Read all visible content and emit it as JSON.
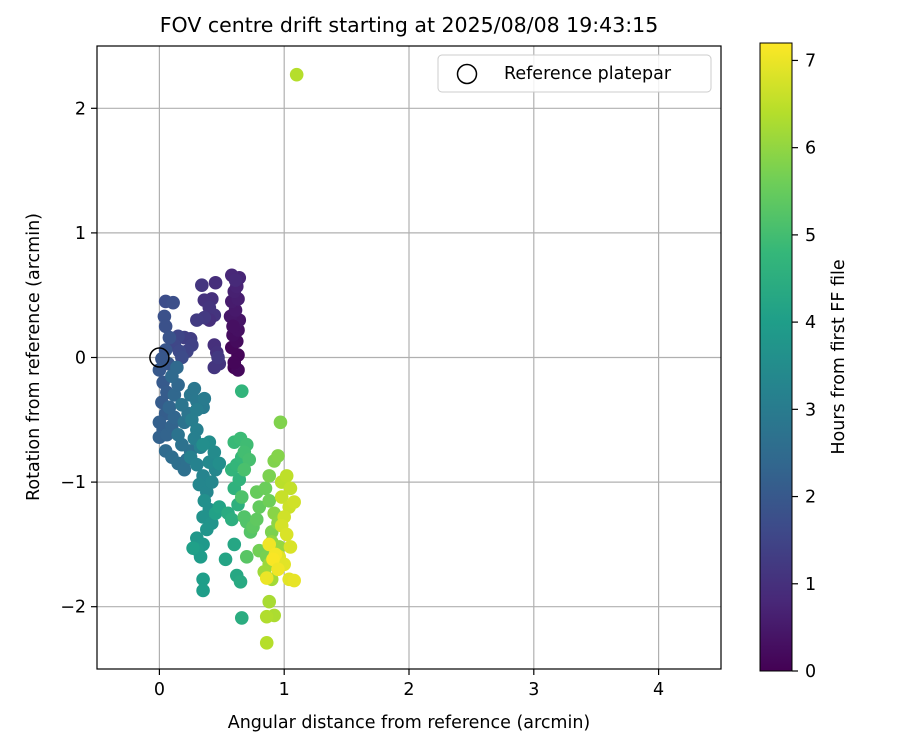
{
  "chart_data": {
    "type": "scatter",
    "title": "FOV centre drift starting at 2025/08/08 19:43:15",
    "xlabel": "Angular distance from reference (arcmin)",
    "ylabel": "Rotation from reference (arcmin)",
    "xlim": [
      -0.5,
      4.5
    ],
    "ylim": [
      -2.5,
      2.5
    ],
    "xticks": [
      0,
      1,
      2,
      3,
      4
    ],
    "yticks": [
      -2,
      -1,
      0,
      1,
      2
    ],
    "grid": true,
    "legend": {
      "placement": "top-right",
      "entries": [
        "Reference platepar"
      ]
    },
    "reference_point": {
      "x": 0.0,
      "y": 0.0,
      "label": "Reference platepar"
    },
    "colorbar": {
      "label": "Hours from first FF file",
      "colormap": "viridis",
      "range": [
        0,
        7.2
      ],
      "ticks": [
        0,
        1,
        2,
        3,
        4,
        5,
        6,
        7
      ]
    },
    "points": [
      {
        "x": 0.6,
        "y": -0.08,
        "c": 0.05
      },
      {
        "x": 0.63,
        "y": 0.02,
        "c": 0.1
      },
      {
        "x": 0.58,
        "y": 0.08,
        "c": 0.12
      },
      {
        "x": 0.62,
        "y": 0.13,
        "c": 0.2
      },
      {
        "x": 0.59,
        "y": 0.18,
        "c": 0.25
      },
      {
        "x": 0.63,
        "y": 0.22,
        "c": 0.3
      },
      {
        "x": 0.61,
        "y": 0.27,
        "c": 0.35
      },
      {
        "x": 0.64,
        "y": 0.3,
        "c": 0.4
      },
      {
        "x": 0.57,
        "y": 0.33,
        "c": 0.45
      },
      {
        "x": 0.61,
        "y": 0.38,
        "c": 0.5
      },
      {
        "x": 0.58,
        "y": 0.45,
        "c": 0.55
      },
      {
        "x": 0.63,
        "y": 0.47,
        "c": 0.6
      },
      {
        "x": 0.6,
        "y": 0.53,
        "c": 0.65
      },
      {
        "x": 0.62,
        "y": 0.57,
        "c": 0.7
      },
      {
        "x": 0.64,
        "y": 0.64,
        "c": 0.75
      },
      {
        "x": 0.58,
        "y": 0.66,
        "c": 0.8
      },
      {
        "x": 0.61,
        "y": 0.62,
        "c": 0.85
      },
      {
        "x": 0.59,
        "y": 0.25,
        "c": 0.3
      },
      {
        "x": 0.63,
        "y": -0.1,
        "c": 0.15
      },
      {
        "x": 0.6,
        "y": -0.04,
        "c": 0.1
      },
      {
        "x": 0.45,
        "y": 0.6,
        "c": 0.95
      },
      {
        "x": 0.42,
        "y": 0.47,
        "c": 1.0
      },
      {
        "x": 0.36,
        "y": 0.46,
        "c": 1.05
      },
      {
        "x": 0.4,
        "y": 0.4,
        "c": 1.1
      },
      {
        "x": 0.34,
        "y": 0.58,
        "c": 1.15
      },
      {
        "x": 0.44,
        "y": 0.34,
        "c": 1.1
      },
      {
        "x": 0.4,
        "y": 0.3,
        "c": 1.0
      },
      {
        "x": 0.36,
        "y": 0.32,
        "c": 1.2
      },
      {
        "x": 0.3,
        "y": 0.3,
        "c": 1.25
      },
      {
        "x": 0.44,
        "y": 0.1,
        "c": 1.0
      },
      {
        "x": 0.46,
        "y": 0.04,
        "c": 1.05
      },
      {
        "x": 0.48,
        "y": -0.05,
        "c": 1.1
      },
      {
        "x": 0.44,
        "y": -0.08,
        "c": 1.15
      },
      {
        "x": 0.47,
        "y": 0.0,
        "c": 1.2
      },
      {
        "x": 0.25,
        "y": 0.15,
        "c": 1.3
      },
      {
        "x": 0.2,
        "y": 0.16,
        "c": 1.35
      },
      {
        "x": 0.26,
        "y": 0.1,
        "c": 1.4
      },
      {
        "x": 0.22,
        "y": 0.05,
        "c": 1.45
      },
      {
        "x": 0.15,
        "y": 0.17,
        "c": 1.5
      },
      {
        "x": 0.12,
        "y": 0.1,
        "c": 1.55
      },
      {
        "x": 0.16,
        "y": 0.05,
        "c": 1.6
      },
      {
        "x": 0.18,
        "y": 0.0,
        "c": 1.65
      },
      {
        "x": 0.05,
        "y": 0.45,
        "c": 1.7
      },
      {
        "x": 0.11,
        "y": 0.44,
        "c": 1.75
      },
      {
        "x": 0.04,
        "y": 0.33,
        "c": 1.8
      },
      {
        "x": 0.05,
        "y": 0.25,
        "c": 1.8
      },
      {
        "x": 0.08,
        "y": 0.16,
        "c": 1.85
      },
      {
        "x": 0.05,
        "y": 0.06,
        "c": 1.9
      },
      {
        "x": 0.02,
        "y": -0.01,
        "c": 1.95
      },
      {
        "x": 0.07,
        "y": -0.05,
        "c": 1.95
      },
      {
        "x": 0.0,
        "y": -0.1,
        "c": 2.0
      },
      {
        "x": 0.03,
        "y": -0.2,
        "c": 2.05
      },
      {
        "x": 0.06,
        "y": -0.28,
        "c": 2.1
      },
      {
        "x": 0.02,
        "y": -0.36,
        "c": 2.1
      },
      {
        "x": 0.05,
        "y": -0.45,
        "c": 2.15
      },
      {
        "x": 0.0,
        "y": -0.52,
        "c": 2.2
      },
      {
        "x": 0.03,
        "y": -0.58,
        "c": 2.2
      },
      {
        "x": 0.0,
        "y": -0.64,
        "c": 2.25
      },
      {
        "x": 0.06,
        "y": -0.62,
        "c": 2.3
      },
      {
        "x": 0.1,
        "y": -0.55,
        "c": 2.3
      },
      {
        "x": 0.12,
        "y": -0.48,
        "c": 2.35
      },
      {
        "x": 0.08,
        "y": -0.4,
        "c": 2.35
      },
      {
        "x": 0.12,
        "y": -0.3,
        "c": 2.4
      },
      {
        "x": 0.15,
        "y": -0.22,
        "c": 2.4
      },
      {
        "x": 0.1,
        "y": -0.15,
        "c": 2.45
      },
      {
        "x": 0.14,
        "y": -0.08,
        "c": 2.45
      },
      {
        "x": 0.05,
        "y": -0.75,
        "c": 2.5
      },
      {
        "x": 0.1,
        "y": -0.8,
        "c": 2.55
      },
      {
        "x": 0.15,
        "y": -0.85,
        "c": 2.6
      },
      {
        "x": 0.2,
        "y": -0.9,
        "c": 2.65
      },
      {
        "x": 0.22,
        "y": -0.82,
        "c": 2.65
      },
      {
        "x": 0.25,
        "y": -0.75,
        "c": 2.7
      },
      {
        "x": 0.18,
        "y": -0.7,
        "c": 2.7
      },
      {
        "x": 0.15,
        "y": -0.62,
        "c": 2.75
      },
      {
        "x": 0.2,
        "y": -0.52,
        "c": 2.75
      },
      {
        "x": 0.23,
        "y": -0.45,
        "c": 2.8
      },
      {
        "x": 0.18,
        "y": -0.38,
        "c": 2.8
      },
      {
        "x": 0.25,
        "y": -0.3,
        "c": 2.85
      },
      {
        "x": 0.28,
        "y": -0.25,
        "c": 2.85
      },
      {
        "x": 0.3,
        "y": -0.35,
        "c": 2.9
      },
      {
        "x": 0.35,
        "y": -0.4,
        "c": 2.95
      },
      {
        "x": 0.36,
        "y": -0.33,
        "c": 3.0
      },
      {
        "x": 0.3,
        "y": -0.42,
        "c": 3.05
      },
      {
        "x": 0.26,
        "y": -0.5,
        "c": 3.05
      },
      {
        "x": 0.3,
        "y": -0.58,
        "c": 3.1
      },
      {
        "x": 0.28,
        "y": -0.65,
        "c": 3.1
      },
      {
        "x": 0.33,
        "y": -0.72,
        "c": 3.15
      },
      {
        "x": 0.25,
        "y": -0.8,
        "c": 3.15
      },
      {
        "x": 0.3,
        "y": -0.86,
        "c": 3.2
      },
      {
        "x": 0.35,
        "y": -0.95,
        "c": 3.25
      },
      {
        "x": 0.32,
        "y": -1.02,
        "c": 3.3
      },
      {
        "x": 0.38,
        "y": -1.08,
        "c": 3.3
      },
      {
        "x": 0.42,
        "y": -1.0,
        "c": 3.35
      },
      {
        "x": 0.45,
        "y": -0.9,
        "c": 3.35
      },
      {
        "x": 0.4,
        "y": -0.84,
        "c": 3.4
      },
      {
        "x": 0.44,
        "y": -0.76,
        "c": 3.45
      },
      {
        "x": 0.4,
        "y": -0.68,
        "c": 3.5
      },
      {
        "x": 0.35,
        "y": -0.7,
        "c": 3.55
      },
      {
        "x": 0.48,
        "y": -0.85,
        "c": 3.55
      },
      {
        "x": 0.36,
        "y": -1.15,
        "c": 3.6
      },
      {
        "x": 0.4,
        "y": -1.22,
        "c": 3.6
      },
      {
        "x": 0.35,
        "y": -1.28,
        "c": 3.65
      },
      {
        "x": 0.42,
        "y": -1.33,
        "c": 3.7
      },
      {
        "x": 0.38,
        "y": -1.38,
        "c": 3.75
      },
      {
        "x": 0.3,
        "y": -1.45,
        "c": 3.8
      },
      {
        "x": 0.35,
        "y": -1.5,
        "c": 3.85
      },
      {
        "x": 0.3,
        "y": -1.54,
        "c": 3.9
      },
      {
        "x": 0.33,
        "y": -1.6,
        "c": 3.95
      },
      {
        "x": 0.35,
        "y": -1.78,
        "c": 4.0
      },
      {
        "x": 0.35,
        "y": -1.87,
        "c": 4.0
      },
      {
        "x": 0.27,
        "y": -1.53,
        "c": 4.05
      },
      {
        "x": 0.45,
        "y": -1.25,
        "c": 4.1
      },
      {
        "x": 0.48,
        "y": -1.2,
        "c": 4.15
      },
      {
        "x": 0.53,
        "y": -1.62,
        "c": 4.2
      },
      {
        "x": 0.6,
        "y": -1.5,
        "c": 4.25
      },
      {
        "x": 0.62,
        "y": -1.75,
        "c": 4.3
      },
      {
        "x": 0.65,
        "y": -1.8,
        "c": 4.35
      },
      {
        "x": 0.66,
        "y": -2.09,
        "c": 4.45
      },
      {
        "x": 0.55,
        "y": -1.25,
        "c": 4.4
      },
      {
        "x": 0.58,
        "y": -1.3,
        "c": 4.5
      },
      {
        "x": 0.63,
        "y": -1.18,
        "c": 4.55
      },
      {
        "x": 0.6,
        "y": -1.05,
        "c": 4.6
      },
      {
        "x": 0.64,
        "y": -0.98,
        "c": 4.65
      },
      {
        "x": 0.66,
        "y": -0.27,
        "c": 4.7
      },
      {
        "x": 0.58,
        "y": -0.9,
        "c": 4.7
      },
      {
        "x": 0.62,
        "y": -0.86,
        "c": 4.75
      },
      {
        "x": 0.66,
        "y": -0.8,
        "c": 4.8
      },
      {
        "x": 0.6,
        "y": -0.68,
        "c": 4.85
      },
      {
        "x": 0.65,
        "y": -0.65,
        "c": 4.9
      },
      {
        "x": 0.7,
        "y": -0.7,
        "c": 4.95
      },
      {
        "x": 0.68,
        "y": -0.76,
        "c": 5.0
      },
      {
        "x": 0.72,
        "y": -0.82,
        "c": 5.05
      },
      {
        "x": 0.68,
        "y": -0.9,
        "c": 5.1
      },
      {
        "x": 0.66,
        "y": -1.12,
        "c": 5.15
      },
      {
        "x": 0.68,
        "y": -1.28,
        "c": 5.2
      },
      {
        "x": 0.7,
        "y": -1.32,
        "c": 5.2
      },
      {
        "x": 0.73,
        "y": -1.4,
        "c": 5.25
      },
      {
        "x": 0.7,
        "y": -1.6,
        "c": 5.3
      },
      {
        "x": 0.75,
        "y": -1.36,
        "c": 5.35
      },
      {
        "x": 0.78,
        "y": -1.3,
        "c": 5.4
      },
      {
        "x": 0.8,
        "y": -1.2,
        "c": 5.45
      },
      {
        "x": 0.78,
        "y": -1.08,
        "c": 5.5
      },
      {
        "x": 0.85,
        "y": -1.05,
        "c": 5.55
      },
      {
        "x": 0.88,
        "y": -1.15,
        "c": 5.6
      },
      {
        "x": 0.8,
        "y": -1.55,
        "c": 5.65
      },
      {
        "x": 0.86,
        "y": -1.6,
        "c": 5.7
      },
      {
        "x": 0.9,
        "y": -1.4,
        "c": 5.75
      },
      {
        "x": 0.88,
        "y": -0.95,
        "c": 5.75
      },
      {
        "x": 0.92,
        "y": -0.83,
        "c": 5.8
      },
      {
        "x": 0.95,
        "y": -0.79,
        "c": 5.85
      },
      {
        "x": 0.97,
        "y": -0.52,
        "c": 5.8
      },
      {
        "x": 0.92,
        "y": -1.25,
        "c": 5.9
      },
      {
        "x": 0.95,
        "y": -1.33,
        "c": 5.95
      },
      {
        "x": 0.9,
        "y": -1.48,
        "c": 6.0
      },
      {
        "x": 0.96,
        "y": -1.52,
        "c": 6.05
      },
      {
        "x": 0.88,
        "y": -1.66,
        "c": 6.1
      },
      {
        "x": 0.84,
        "y": -1.72,
        "c": 6.15
      },
      {
        "x": 0.9,
        "y": -1.78,
        "c": 6.2
      },
      {
        "x": 0.88,
        "y": -1.96,
        "c": 6.25
      },
      {
        "x": 0.92,
        "y": -2.07,
        "c": 6.3
      },
      {
        "x": 0.86,
        "y": -2.08,
        "c": 6.35
      },
      {
        "x": 0.86,
        "y": -2.29,
        "c": 6.4
      },
      {
        "x": 1.1,
        "y": 2.27,
        "c": 6.4
      },
      {
        "x": 0.98,
        "y": -1.0,
        "c": 6.45
      },
      {
        "x": 1.02,
        "y": -0.95,
        "c": 6.5
      },
      {
        "x": 1.05,
        "y": -1.05,
        "c": 6.55
      },
      {
        "x": 0.98,
        "y": -1.12,
        "c": 6.6
      },
      {
        "x": 1.04,
        "y": -1.2,
        "c": 6.65
      },
      {
        "x": 1.08,
        "y": -1.16,
        "c": 6.7
      },
      {
        "x": 1.0,
        "y": -1.28,
        "c": 6.7
      },
      {
        "x": 0.98,
        "y": -1.35,
        "c": 6.75
      },
      {
        "x": 1.02,
        "y": -1.42,
        "c": 6.8
      },
      {
        "x": 1.05,
        "y": -1.52,
        "c": 6.8
      },
      {
        "x": 0.96,
        "y": -1.6,
        "c": 6.85
      },
      {
        "x": 1.0,
        "y": -1.66,
        "c": 6.9
      },
      {
        "x": 1.04,
        "y": -1.78,
        "c": 6.9
      },
      {
        "x": 1.08,
        "y": -1.79,
        "c": 6.95
      },
      {
        "x": 0.88,
        "y": -1.5,
        "c": 7.05
      },
      {
        "x": 0.93,
        "y": -1.58,
        "c": 7.1
      },
      {
        "x": 0.91,
        "y": -1.62,
        "c": 7.15
      },
      {
        "x": 0.86,
        "y": -1.77,
        "c": 7.0
      },
      {
        "x": 0.95,
        "y": -1.7,
        "c": 7.05
      }
    ]
  }
}
